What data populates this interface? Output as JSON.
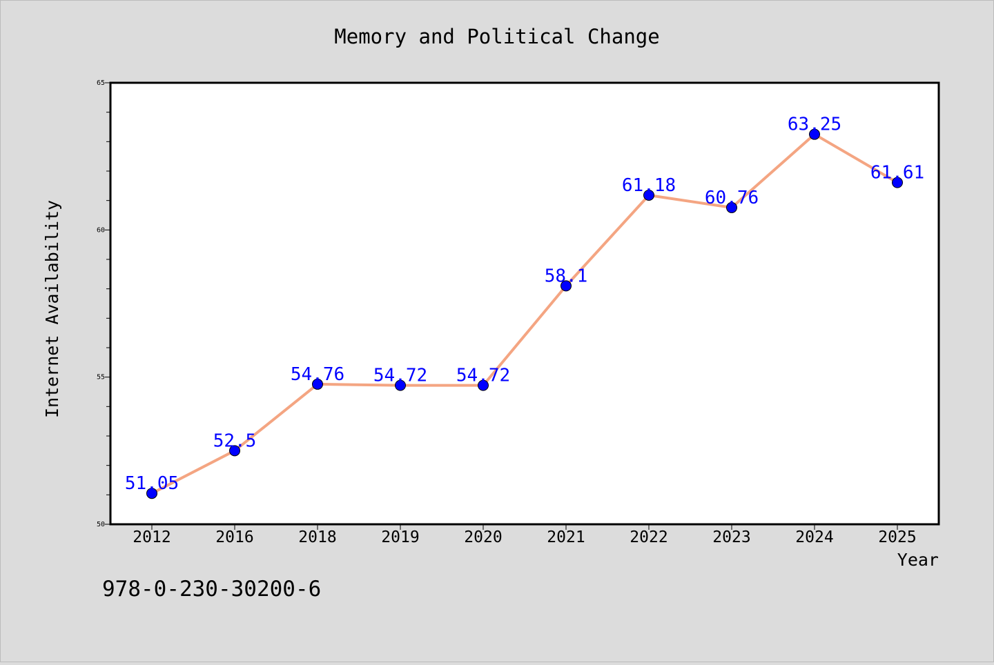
{
  "chart_data": {
    "type": "line",
    "title": "Memory and Political Change",
    "xlabel": "Year",
    "ylabel": "Internet Availability",
    "categories": [
      "2012",
      "2016",
      "2018",
      "2019",
      "2020",
      "2021",
      "2022",
      "2023",
      "2024",
      "2025"
    ],
    "series": [
      {
        "values": [
          51.05,
          52.5,
          54.76,
          54.72,
          54.72,
          58.1,
          61.18,
          60.76,
          63.25,
          61.61
        ],
        "data_labels": [
          "51.05",
          "52.5",
          "54.76",
          "54.72",
          "54.72",
          "58.1",
          "61.18",
          "60.76",
          "63.25",
          "61.61"
        ]
      }
    ],
    "ylim": [
      50,
      65
    ],
    "y_ticks": [
      "50",
      "55",
      "60",
      "65"
    ],
    "grid": false,
    "legend": "none",
    "colors": {
      "line": "#f4a582",
      "marker": "#0000ff",
      "label": "#0000ff",
      "plot_background": "#ffffff",
      "page_background": "#dcdcdc"
    }
  },
  "footer_text": "978-0-230-30200-6"
}
